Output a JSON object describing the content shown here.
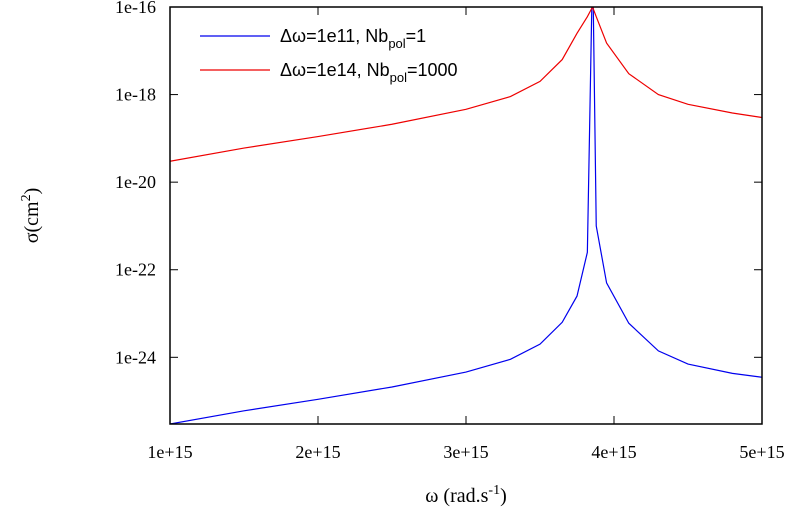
{
  "chart_data": {
    "type": "line",
    "title": "",
    "xlabel": "ω (rad.s",
    "xlabel_sup": "-1",
    "xlabel_close": ")",
    "ylabel": "σ(cm",
    "ylabel_sup": "2",
    "ylabel_close": ")",
    "x_scale": "linear",
    "y_scale": "log",
    "xlim": [
      1000000000000000.0,
      5000000000000000.0
    ],
    "ylim": [
      3e-26,
      1e-16
    ],
    "xticks": [
      1000000000000000.0,
      2000000000000000.0,
      3000000000000000.0,
      4000000000000000.0,
      5000000000000000.0
    ],
    "xtick_labels": [
      "1e+15",
      "2e+15",
      "3e+15",
      "4e+15",
      "5e+15"
    ],
    "yticks": [
      1e-16,
      1e-18,
      1e-20,
      1e-22,
      1e-24
    ],
    "ytick_labels": [
      "1e-16",
      "1e-18",
      "1e-20",
      "1e-22",
      "1e-24"
    ],
    "grid": false,
    "legend_position": "top-left",
    "series": [
      {
        "legend": {
          "prefix": "Δω=1e11, Nb",
          "sub": "pol",
          "suffix": "=1"
        },
        "color": "#0000ee",
        "x": [
          1000000000000000.0,
          1500000000000000.0,
          2000000000000000.0,
          2500000000000000.0,
          3000000000000000.0,
          3300000000000000.0,
          3500000000000000.0,
          3650000000000000.0,
          3750000000000000.0,
          3820000000000000.0,
          3850000000000000.0,
          3860000000000000.0,
          3880000000000000.0,
          3950000000000000.0,
          4100000000000000.0,
          4300000000000000.0,
          4500000000000000.0,
          4800000000000000.0,
          5000000000000000.0
        ],
        "y": [
          3e-26,
          6e-26,
          1.1e-25,
          2.1e-25,
          4.6e-25,
          9e-25,
          2e-24,
          6.3e-24,
          2.5e-23,
          2.5e-22,
          1e-16,
          1e-16,
          1e-21,
          5e-23,
          6e-24,
          1.4e-24,
          7e-25,
          4.3e-25,
          3.5e-25
        ]
      },
      {
        "legend": {
          "prefix": "Δω=1e14, Nb",
          "sub": "pol",
          "suffix": "=1000"
        },
        "color": "#ee0000",
        "x": [
          1000000000000000.0,
          1500000000000000.0,
          2000000000000000.0,
          2500000000000000.0,
          3000000000000000.0,
          3300000000000000.0,
          3500000000000000.0,
          3650000000000000.0,
          3750000000000000.0,
          3820000000000000.0,
          3855000000000000.0,
          3880000000000000.0,
          3950000000000000.0,
          4100000000000000.0,
          4300000000000000.0,
          4500000000000000.0,
          4800000000000000.0,
          5000000000000000.0
        ],
        "y": [
          3e-20,
          6e-20,
          1.1e-19,
          2.1e-19,
          4.6e-19,
          9e-19,
          2e-18,
          6.3e-18,
          2.5e-17,
          6e-17,
          1e-16,
          6e-17,
          1.5e-17,
          3e-18,
          1e-18,
          6e-19,
          3.8e-19,
          3e-19
        ]
      }
    ]
  }
}
